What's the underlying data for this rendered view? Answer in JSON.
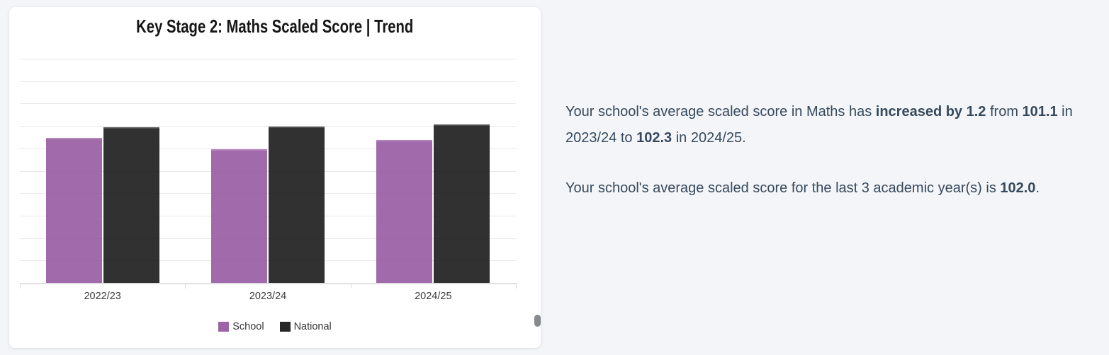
{
  "chart_data": {
    "type": "bar",
    "title": "Key Stage 2: Maths Scaled Score | Trend",
    "categories": [
      "2022/23",
      "2023/24",
      "2024/25"
    ],
    "series": [
      {
        "name": "School",
        "color": "#9c63a6",
        "border_color": "#b27eb9",
        "values": [
          102.6,
          101.1,
          102.3
        ]
      },
      {
        "name": "National",
        "color": "#262626",
        "border_color": "#454545",
        "values": [
          104.0,
          104.1,
          104.4
        ]
      }
    ],
    "ylim": [
      83,
      113.6
    ],
    "gridline_intervals": 10,
    "grid": true,
    "y_axis_labels_visible": false,
    "legend_position": "bottom"
  },
  "summary": {
    "paragraphs": [
      {
        "segments": [
          {
            "text": "Your school's average scaled score in Maths has ",
            "bold": false
          },
          {
            "text": "increased by 1.2",
            "bold": true
          },
          {
            "text": " from ",
            "bold": false
          },
          {
            "text": "101.1",
            "bold": true
          },
          {
            "text": " in 2023/24 to ",
            "bold": false
          },
          {
            "text": "102.3",
            "bold": true
          },
          {
            "text": " in 2024/25.",
            "bold": false
          }
        ]
      },
      {
        "segments": [
          {
            "text": "Your school's average scaled score for the last 3 academic year(s) is ",
            "bold": false
          },
          {
            "text": "102.0",
            "bold": true
          },
          {
            "text": ".",
            "bold": false
          }
        ]
      }
    ]
  }
}
